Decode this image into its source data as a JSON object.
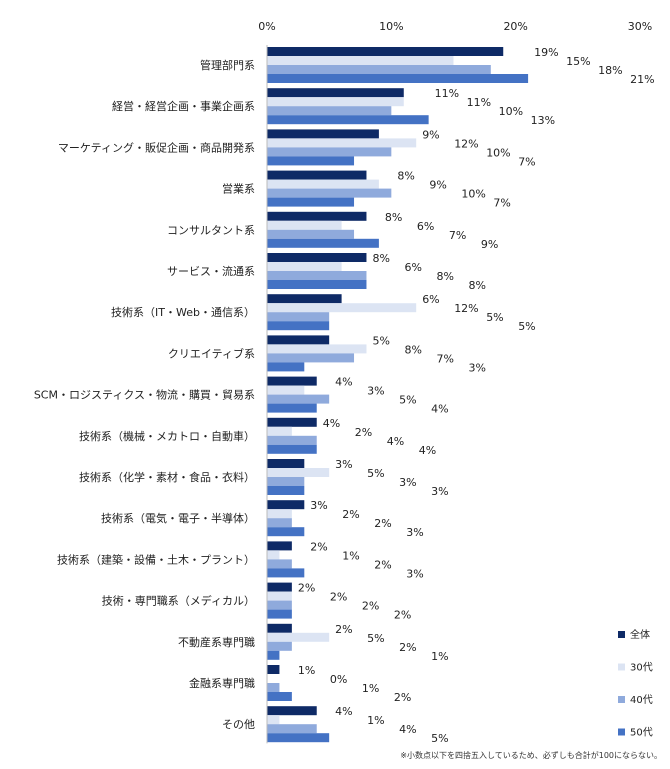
{
  "chart_data": {
    "type": "bar",
    "orientation": "horizontal",
    "title": "",
    "xlabel": "",
    "ylabel": "",
    "xlim": [
      0,
      30
    ],
    "xticks": [
      "0%",
      "10%",
      "20%",
      "30%"
    ],
    "xtick_values": [
      0,
      10,
      20,
      30
    ],
    "grid": false,
    "legend_position": "bottom-right",
    "categories": [
      "管理部門系",
      "経営・経営企画・事業企画系",
      "マーケティング・販促企画・商品開発系",
      "営業系",
      "コンサルタント系",
      "サービス・流通系",
      "技術系（IT・Web・通信系）",
      "クリエイティブ系",
      "SCM・ロジスティクス・物流・購買・貿易系",
      "技術系（機械・メカトロ・自動車）",
      "技術系（化学・素材・食品・衣料）",
      "技術系（電気・電子・半導体）",
      "技術系（建築・設備・土木・プラント）",
      "技術・専門職系（メディカル）",
      "不動産系専門職",
      "金融系専門職",
      "その他"
    ],
    "series": [
      {
        "name": "全体",
        "color": "#0e2a66",
        "values": [
          19,
          11,
          9,
          8,
          8,
          8,
          6,
          5,
          4,
          4,
          3,
          3,
          2,
          2,
          2,
          1,
          4
        ]
      },
      {
        "name": "30代",
        "color": "#dce4f3",
        "values": [
          15,
          11,
          12,
          9,
          6,
          6,
          12,
          8,
          3,
          2,
          5,
          2,
          1,
          2,
          5,
          0,
          1
        ]
      },
      {
        "name": "40代",
        "color": "#8faadc",
        "values": [
          18,
          10,
          10,
          10,
          7,
          8,
          5,
          7,
          5,
          4,
          3,
          2,
          2,
          2,
          2,
          1,
          4
        ]
      },
      {
        "name": "50代",
        "color": "#4472c4",
        "values": [
          21,
          13,
          7,
          7,
          9,
          8,
          5,
          3,
          4,
          4,
          3,
          3,
          3,
          2,
          1,
          2,
          5
        ]
      }
    ],
    "value_suffix": "%",
    "footnote": "※小数点以下を四捨五入しているため、必ずしも合計が100にならない。"
  }
}
